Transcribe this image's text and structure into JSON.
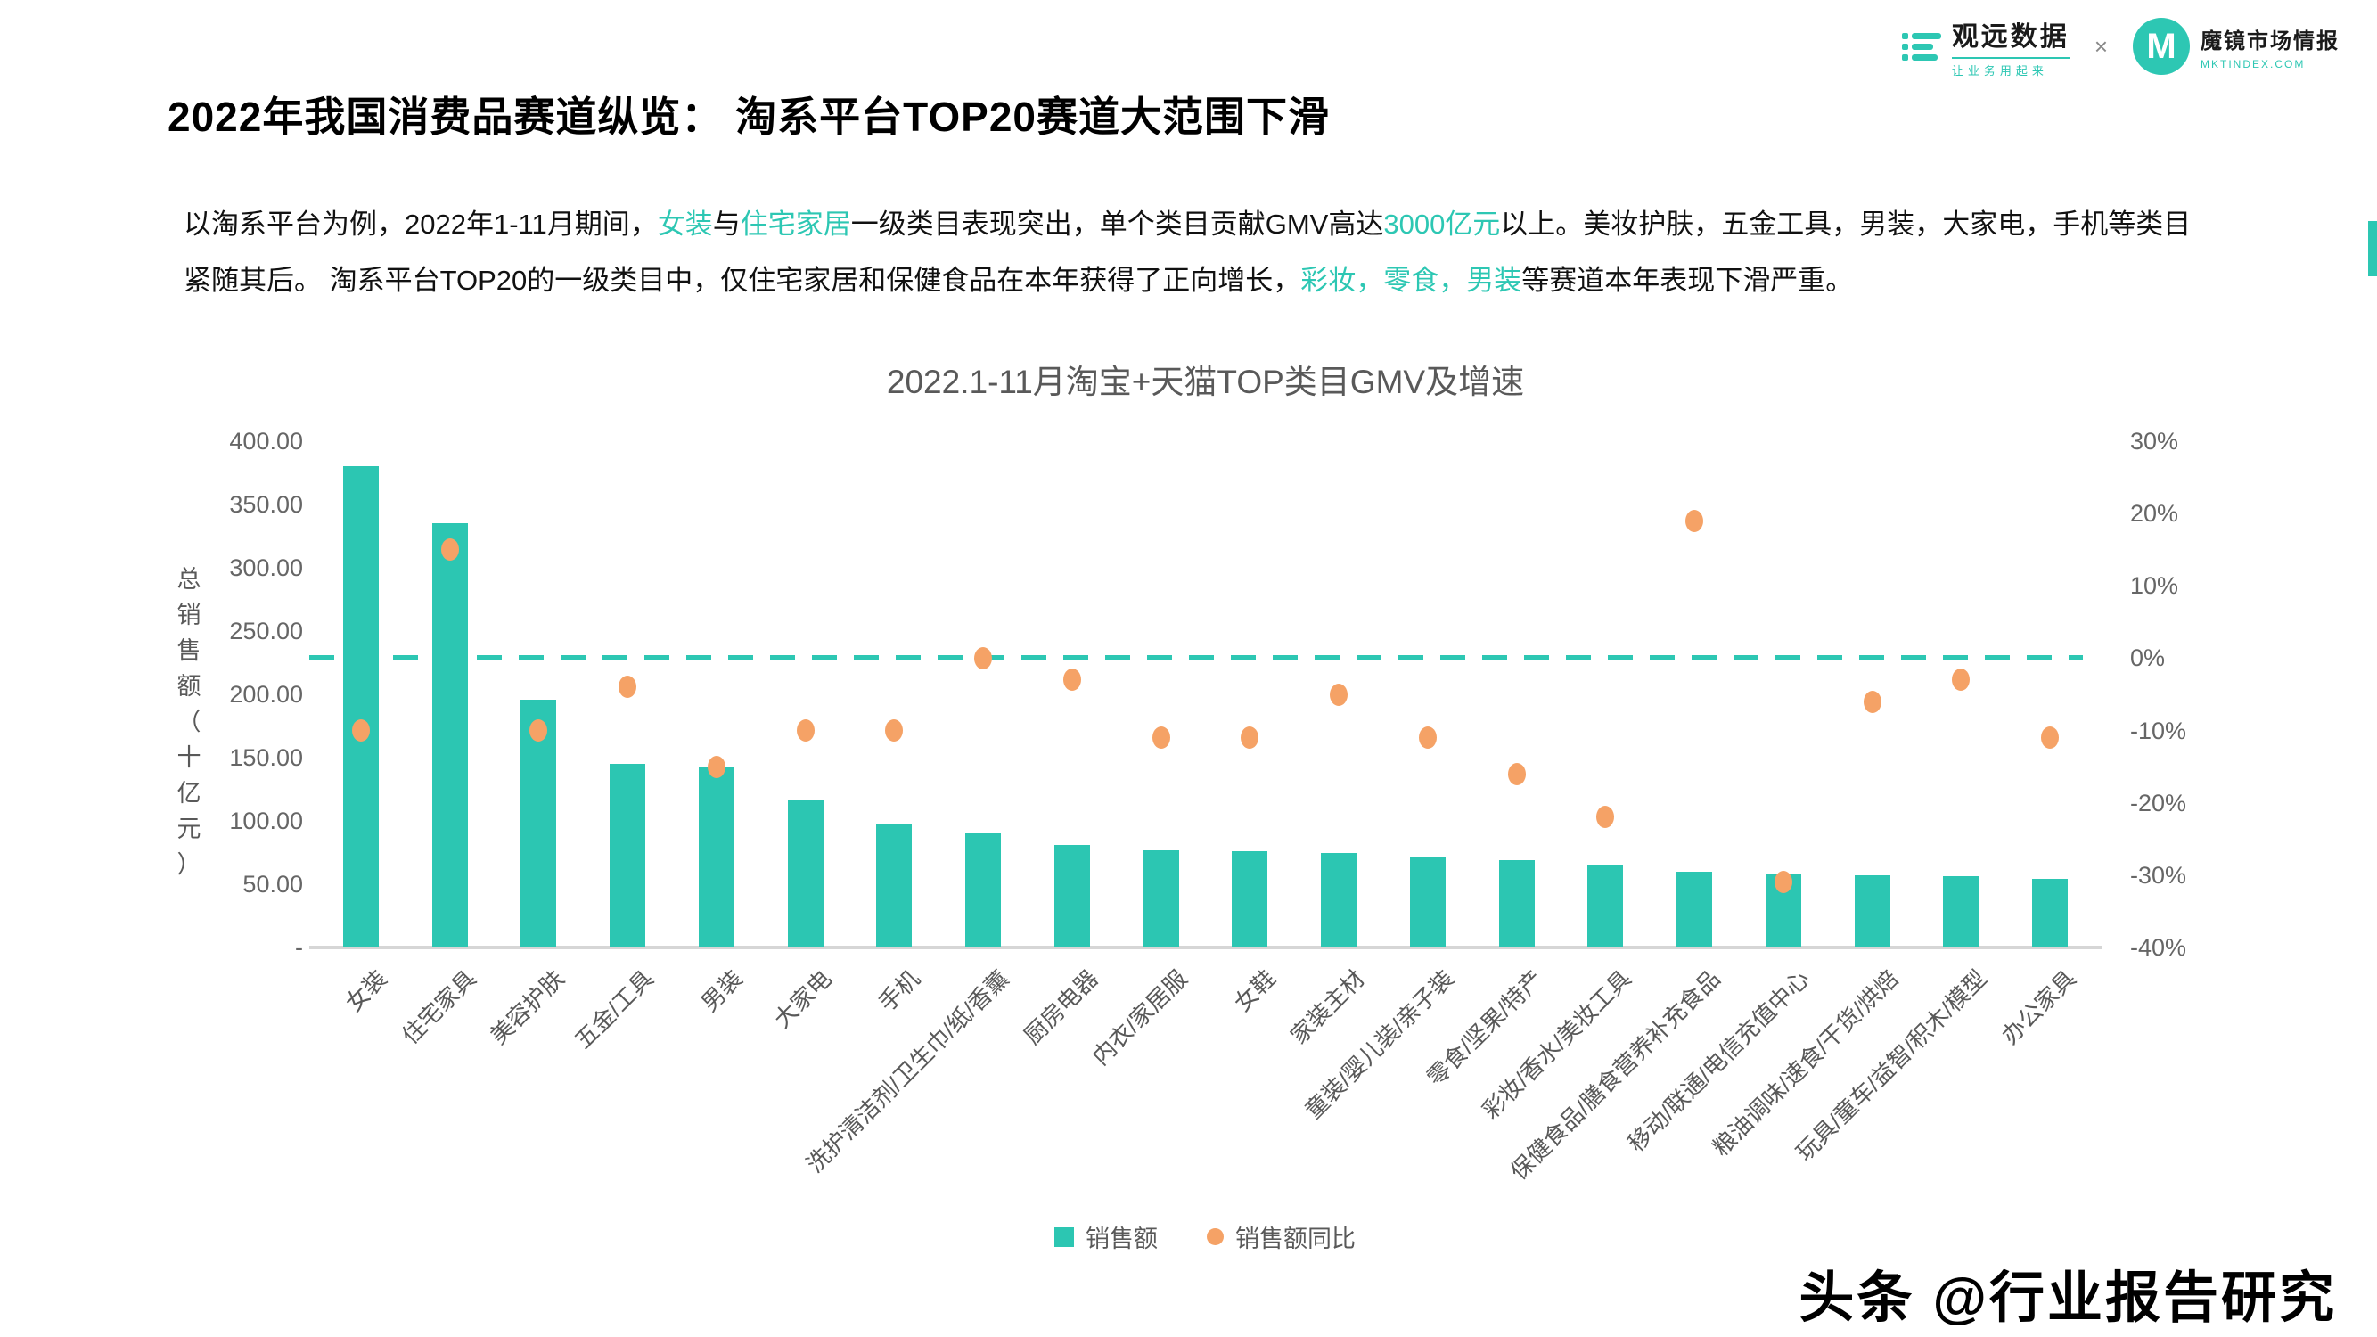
{
  "colors": {
    "accent": "#2dc7b3",
    "bar": "#2cc6b2",
    "marker": "#f5a266",
    "axis_text": "#595959"
  },
  "logos": {
    "guanyuan": {
      "name": "观远数据",
      "tagline": "让业务用起来"
    },
    "separator": "×",
    "mojing": {
      "monogram": "M",
      "name": "魔镜市场情报",
      "domain": "MKTINDEX.COM"
    }
  },
  "header": {
    "title": "2022年我国消费品赛道纵览： 淘系平台TOP20赛道大范围下滑"
  },
  "intro": {
    "segments": [
      {
        "text": "以淘系平台为例，2022年1-11月期间，",
        "highlight": false
      },
      {
        "text": "女装",
        "highlight": true
      },
      {
        "text": "与",
        "highlight": false
      },
      {
        "text": "住宅家居",
        "highlight": true
      },
      {
        "text": "一级类目表现突出，单个类目贡献GMV高达",
        "highlight": false
      },
      {
        "text": "3000亿元",
        "highlight": true
      },
      {
        "text": "以上。美妆护肤，五金工具，男装，大家电，手机等类目紧随其后。 淘系平台TOP20的一级类目中，仅住宅家居和保健食品在本年获得了正向增长，",
        "highlight": false
      },
      {
        "text": "彩妆，零食，男装",
        "highlight": true
      },
      {
        "text": "等赛道本年表现下滑严重。",
        "highlight": false
      }
    ]
  },
  "chart_data": {
    "type": "combo-bar-scatter",
    "title": "2022.1-11月淘宝+天猫TOP类目GMV及增速",
    "grid": false,
    "legend_position": "bottom",
    "y_left": {
      "label": "总销售额（十亿元）",
      "ticks": [
        "400.00",
        "350.00",
        "300.00",
        "250.00",
        "200.00",
        "150.00",
        "100.00",
        "50.00",
        "-"
      ],
      "min": 0,
      "max": 400
    },
    "y_right": {
      "ticks": [
        "30%",
        "20%",
        "10%",
        "0%",
        "-10%",
        "-20%",
        "-30%",
        "-40%"
      ],
      "min": -40,
      "max": 30,
      "zero_line": "dashed"
    },
    "categories": [
      "女装",
      "住宅家具",
      "美容护肤",
      "五金/工具",
      "男装",
      "大家电",
      "手机",
      "洗护清洁剂/卫生巾/纸/香薰",
      "厨房电器",
      "内衣/家居服",
      "女鞋",
      "家装主材",
      "童装/婴儿装/亲子装",
      "零食/坚果/特产",
      "彩妆/香水/美妆工具",
      "保健食品/膳食营养补充食品",
      "移动/联通/电信充值中心",
      "粮油调味/速食/干货/烘焙",
      "玩具/童车/益智/积木/模型",
      "办公家具"
    ],
    "series": [
      {
        "name": "销售额",
        "type": "bar",
        "axis": "left",
        "color": "#2cc6b2",
        "values": [
          380,
          335,
          196,
          145,
          142,
          117,
          98,
          91,
          81,
          77,
          76,
          75,
          72,
          69,
          65,
          60,
          58,
          57,
          56,
          54
        ]
      },
      {
        "name": "销售额同比",
        "type": "scatter",
        "axis": "right",
        "color": "#f5a266",
        "values": [
          -10,
          15,
          -10,
          -4,
          -15,
          -10,
          -10,
          0,
          -3,
          -11,
          -11,
          -5,
          -11,
          -16,
          -22,
          19,
          -31,
          -6,
          -3,
          -11
        ]
      }
    ]
  },
  "footer": {
    "watermark": "头条 @行业报告研究"
  }
}
